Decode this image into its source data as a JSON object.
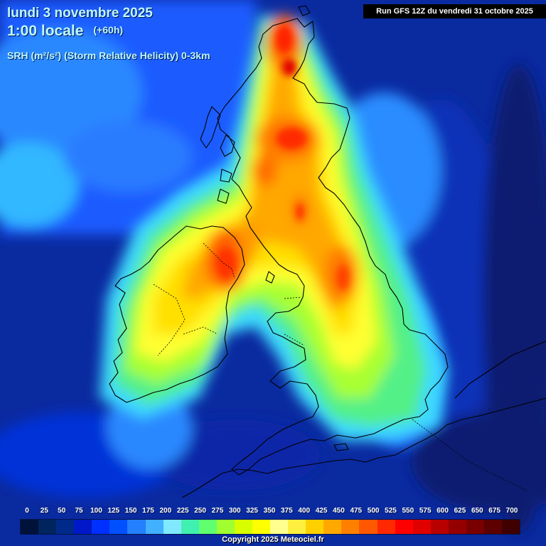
{
  "header": {
    "date_line": "lundi 3 novembre 2025",
    "time_line": "1:00 locale",
    "lead_time": "(+60h)",
    "parameter": "SRH (m²/s²) (Storm Relative Helicity) 0-3km",
    "run_info": "Run GFS 12Z du vendredi 31 octobre 2025"
  },
  "legend": {
    "labels": [
      "0",
      "25",
      "50",
      "75",
      "100",
      "125",
      "150",
      "175",
      "200",
      "225",
      "250",
      "275",
      "300",
      "325",
      "350",
      "375",
      "400",
      "425",
      "450",
      "475",
      "500",
      "525",
      "550",
      "575",
      "600",
      "625",
      "650",
      "675",
      "700"
    ],
    "colors": [
      "#00123a",
      "#00245e",
      "#002a8a",
      "#0018c8",
      "#0030ff",
      "#0050ff",
      "#2480ff",
      "#40b0ff",
      "#80e8ff",
      "#40f0b0",
      "#60ff70",
      "#a0ff30",
      "#d8ff00",
      "#ffff00",
      "#ffff90",
      "#fff040",
      "#ffd000",
      "#ffa800",
      "#ff8000",
      "#ff5800",
      "#ff2800",
      "#ff0000",
      "#e00000",
      "#b80000",
      "#940000",
      "#780000",
      "#5c0000",
      "#400000"
    ]
  },
  "copyright": "Copyright 2025 Meteociel.fr",
  "colors": {
    "sea": "#0a2aa0",
    "coast": "#000000",
    "title": "#bff8ff"
  }
}
